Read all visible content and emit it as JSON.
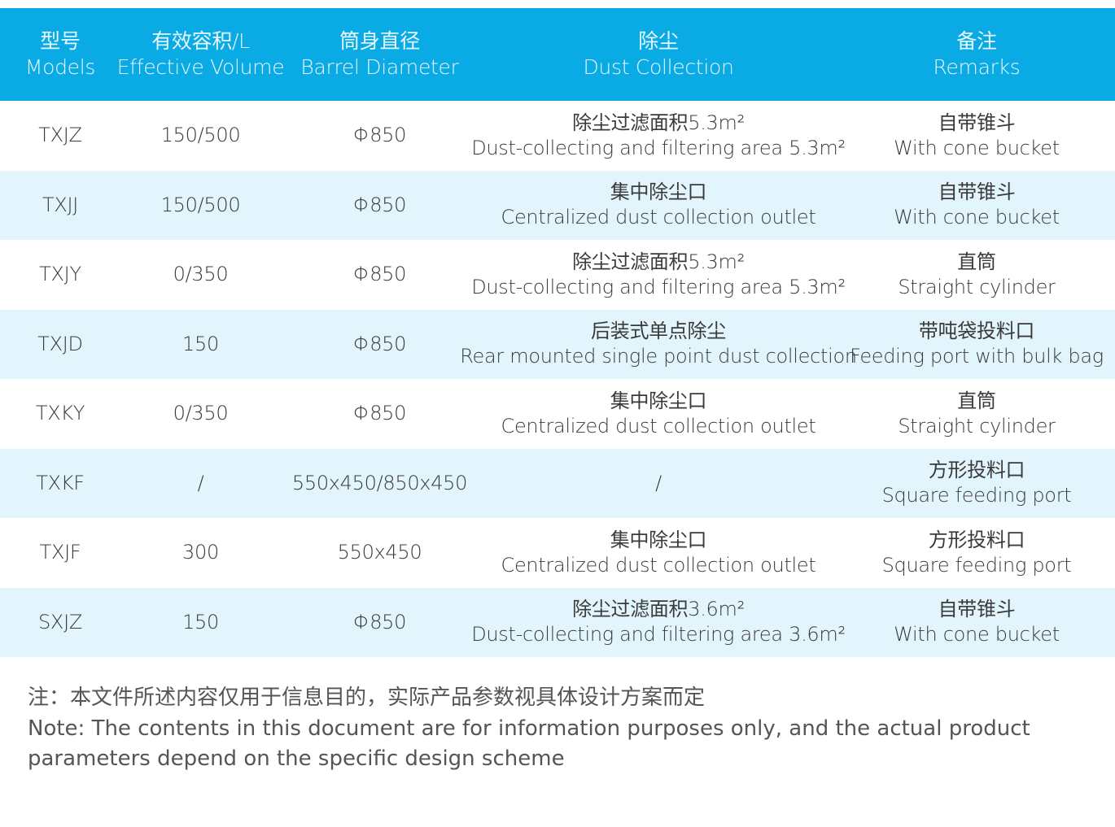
{
  "colors": {
    "header_bg": "#0aabe5",
    "alt_row_bg": "#e3f5fc",
    "text": "#3a3a3a"
  },
  "header": [
    {
      "zh": "型号",
      "en": "Models"
    },
    {
      "zh": "有效容积/L",
      "en": "Effective Volume"
    },
    {
      "zh": "筒身直径",
      "en": "Barrel Diameter"
    },
    {
      "zh": "除尘",
      "en": "Dust Collection"
    },
    {
      "zh": "备注",
      "en": "Remarks"
    }
  ],
  "rows": [
    {
      "model": "TXJZ",
      "volume": "150/500",
      "diameter": "Φ850",
      "dust_zh": "除尘过滤面积5.3m²",
      "dust_en": "Dust-collecting and filtering area 5.3m²",
      "remark_zh": "自带锥斗",
      "remark_en": "With cone bucket"
    },
    {
      "model": "TXJJ",
      "volume": "150/500",
      "diameter": "Φ850",
      "dust_zh": "集中除尘口",
      "dust_en": "Centralized dust collection outlet",
      "remark_zh": "自带锥斗",
      "remark_en": "With cone bucket"
    },
    {
      "model": "TXJY",
      "volume": "0/350",
      "diameter": "Φ850",
      "dust_zh": "除尘过滤面积5.3m²",
      "dust_en": "Dust-collecting and filtering area 5.3m²",
      "remark_zh": "直筒",
      "remark_en": "Straight cylinder"
    },
    {
      "model": "TXJD",
      "volume": "150",
      "diameter": "Φ850",
      "dust_zh": "后装式单点除尘",
      "dust_en": "Rear mounted single point dust collection",
      "remark_zh": "带吨袋投料口",
      "remark_en": "Feeding port with bulk bag"
    },
    {
      "model": "TXKY",
      "volume": "0/350",
      "diameter": "Φ850",
      "dust_zh": "集中除尘口",
      "dust_en": "Centralized dust collection outlet",
      "remark_zh": "直筒",
      "remark_en": "Straight cylinder"
    },
    {
      "model": "TXKF",
      "volume": "/",
      "diameter": "550x450/850x450",
      "dust_zh": "/",
      "dust_en": "",
      "remark_zh": "方形投料口",
      "remark_en": "Square feeding port"
    },
    {
      "model": "TXJF",
      "volume": "300",
      "diameter": "550x450",
      "dust_zh": "集中除尘口",
      "dust_en": "Centralized dust collection outlet",
      "remark_zh": "方形投料口",
      "remark_en": "Square feeding port"
    },
    {
      "model": "SXJZ",
      "volume": "150",
      "diameter": "Φ850",
      "dust_zh": "除尘过滤面积3.6m²",
      "dust_en": "Dust-collecting and filtering area 3.6m²",
      "remark_zh": "自带锥斗",
      "remark_en": "With cone bucket"
    }
  ],
  "note": {
    "zh": "注：本文件所述内容仅用于信息目的，实际产品参数视具体设计方案而定",
    "en": "Note: The contents in this document are for information purposes only, and the actual product parameters depend on the specific design scheme"
  }
}
